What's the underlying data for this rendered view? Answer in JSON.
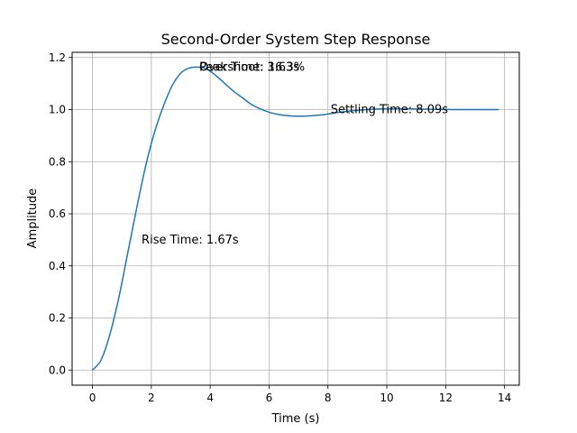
{
  "chart_data": {
    "type": "line",
    "title": "Second-Order System Step Response",
    "xlabel": "Time (s)",
    "ylabel": "Amplitude",
    "xlim": [
      -0.69,
      14.5
    ],
    "ylim": [
      -0.058,
      1.22
    ],
    "xticks": [
      0,
      2,
      4,
      6,
      8,
      10,
      12,
      14
    ],
    "yticks": [
      0.0,
      0.2,
      0.4,
      0.6,
      0.8,
      1.0,
      1.2
    ],
    "xtick_labels": [
      "0",
      "2",
      "4",
      "6",
      "8",
      "10",
      "12",
      "14"
    ],
    "ytick_labels": [
      "0.0",
      "0.2",
      "0.4",
      "0.6",
      "0.8",
      "1.0",
      "1.2"
    ],
    "grid": true,
    "series": [
      {
        "color": "#1f77b4",
        "x": [
          0.0,
          0.3,
          0.6,
          0.9,
          1.2,
          1.5,
          1.8,
          2.1,
          2.4,
          2.7,
          3.0,
          3.3,
          3.6,
          3.9,
          4.2,
          4.5,
          4.8,
          5.1,
          5.4,
          5.7,
          6.0,
          6.3,
          6.6,
          6.9,
          7.2,
          7.5,
          7.8,
          8.1,
          8.4,
          8.7,
          9.0,
          9.3,
          9.6,
          9.9,
          10.2,
          10.5,
          10.8,
          11.1,
          11.4,
          11.7,
          12.0,
          12.3,
          12.6,
          12.9,
          13.2,
          13.5,
          13.8
        ],
        "y": [
          0.0,
          0.04,
          0.14,
          0.28,
          0.45,
          0.62,
          0.78,
          0.91,
          1.01,
          1.09,
          1.14,
          1.16,
          1.163,
          1.155,
          1.13,
          1.1,
          1.07,
          1.045,
          1.02,
          1.003,
          0.99,
          0.982,
          0.977,
          0.975,
          0.975,
          0.977,
          0.98,
          0.985,
          0.99,
          0.994,
          0.997,
          1.0,
          1.002,
          1.003,
          1.003,
          1.003,
          1.003,
          1.002,
          1.002,
          1.001,
          1.001,
          1.0,
          1.0,
          1.0,
          1.0,
          1.0,
          1.0
        ]
      }
    ],
    "annotations": [
      {
        "text": "Rise Time: 1.67s",
        "x": 1.67,
        "y": 0.5
      },
      {
        "text": "Peak Time: 3.63s",
        "x": 3.63,
        "y": 1.163
      },
      {
        "text": "Overshoot: 16.3%",
        "x": 3.63,
        "y": 1.163
      },
      {
        "text": "Settling Time: 8.09s",
        "x": 8.09,
        "y": 1.0
      }
    ]
  }
}
